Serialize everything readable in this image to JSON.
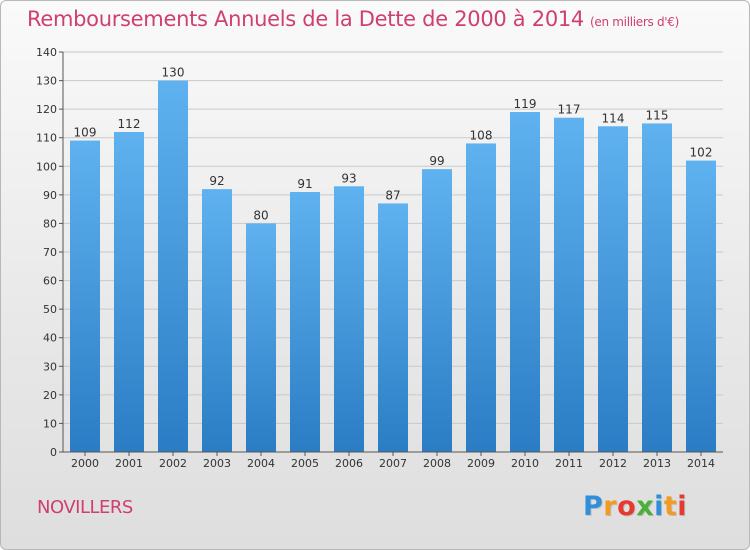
{
  "title": "Remboursements Annuels de la Dette de 2000 à 2014",
  "unit": "(en milliers d'€)",
  "commune": "NOVILLERS",
  "logo": {
    "letters": [
      "P",
      "r",
      "o",
      "x",
      "i",
      "t",
      "i"
    ],
    "colors": [
      "#2f8fd8",
      "#f29b22",
      "#e6392f",
      "#4caf3c",
      "#2f8fd8",
      "#f29b22",
      "#e6392f"
    ]
  },
  "colors": {
    "bar": "#3f97de",
    "bar_light": "#5cb0ee",
    "accent": "#cf3f6f"
  },
  "chart_data": {
    "type": "bar",
    "title": "Remboursements Annuels de la Dette de 2000 à 2014",
    "xlabel": "",
    "ylabel": "",
    "categories": [
      "2000",
      "2001",
      "2002",
      "2003",
      "2004",
      "2005",
      "2006",
      "2007",
      "2008",
      "2009",
      "2010",
      "2011",
      "2012",
      "2013",
      "2014"
    ],
    "values": [
      109,
      112,
      130,
      92,
      80,
      91,
      93,
      87,
      99,
      108,
      119,
      117,
      114,
      115,
      102
    ],
    "ylim": [
      0,
      140
    ],
    "yticks": [
      0,
      10,
      20,
      30,
      40,
      50,
      60,
      70,
      80,
      90,
      100,
      110,
      120,
      130,
      140
    ],
    "grid": true
  }
}
